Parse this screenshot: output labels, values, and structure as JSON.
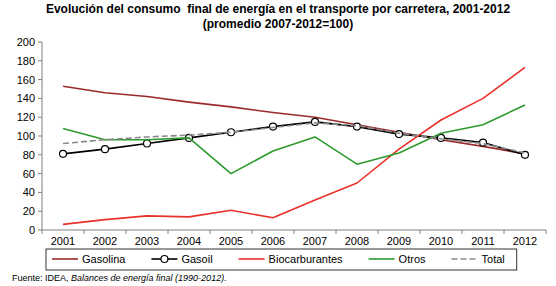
{
  "chart_data": {
    "type": "line",
    "title": "Evolución del consumo  final de energía en el transporte por carretera, 2001-2012",
    "subtitle": "(promedio 2007-2012=100)",
    "source": {
      "label": "Fuente: IDEA, ",
      "work": "Balances de energía final (1990-2012)."
    },
    "categories": [
      "2001",
      "2002",
      "2003",
      "2004",
      "2005",
      "2006",
      "2007",
      "2008",
      "2009",
      "2010",
      "2011",
      "2012"
    ],
    "ylim": [
      0,
      200
    ],
    "yticks": [
      0,
      20,
      40,
      60,
      80,
      100,
      120,
      140,
      160,
      180,
      200
    ],
    "grid": false,
    "legend": "bottom",
    "series": [
      {
        "name": "Gasolina",
        "color": "#9b2a2a",
        "line_style": "solid",
        "values": [
          153,
          146,
          142,
          136,
          131,
          125,
          120,
          112,
          104,
          96,
          89,
          81
        ]
      },
      {
        "name": "Gasoil",
        "color": "#000000",
        "line_style": "solid",
        "marker": "circle",
        "values": [
          81,
          86,
          92,
          98,
          104,
          110,
          115,
          110,
          102,
          98,
          93,
          80
        ]
      },
      {
        "name": "Biocarburantes",
        "color": "#e8312a",
        "line_style": "solid",
        "values": [
          6,
          11,
          15,
          14,
          21,
          13,
          32,
          50,
          86,
          117,
          140,
          173
        ]
      },
      {
        "name": "Otros",
        "color": "#2e9a2e",
        "line_style": "solid",
        "values": [
          108,
          96,
          96,
          98,
          60,
          84,
          99,
          70,
          82,
          103,
          112,
          133
        ]
      },
      {
        "name": "Total",
        "color": "#8a8a8a",
        "line_style": "dashed",
        "values": [
          92,
          96,
          99,
          101,
          104,
          109,
          114,
          111,
          103,
          97,
          92,
          82
        ]
      }
    ]
  }
}
